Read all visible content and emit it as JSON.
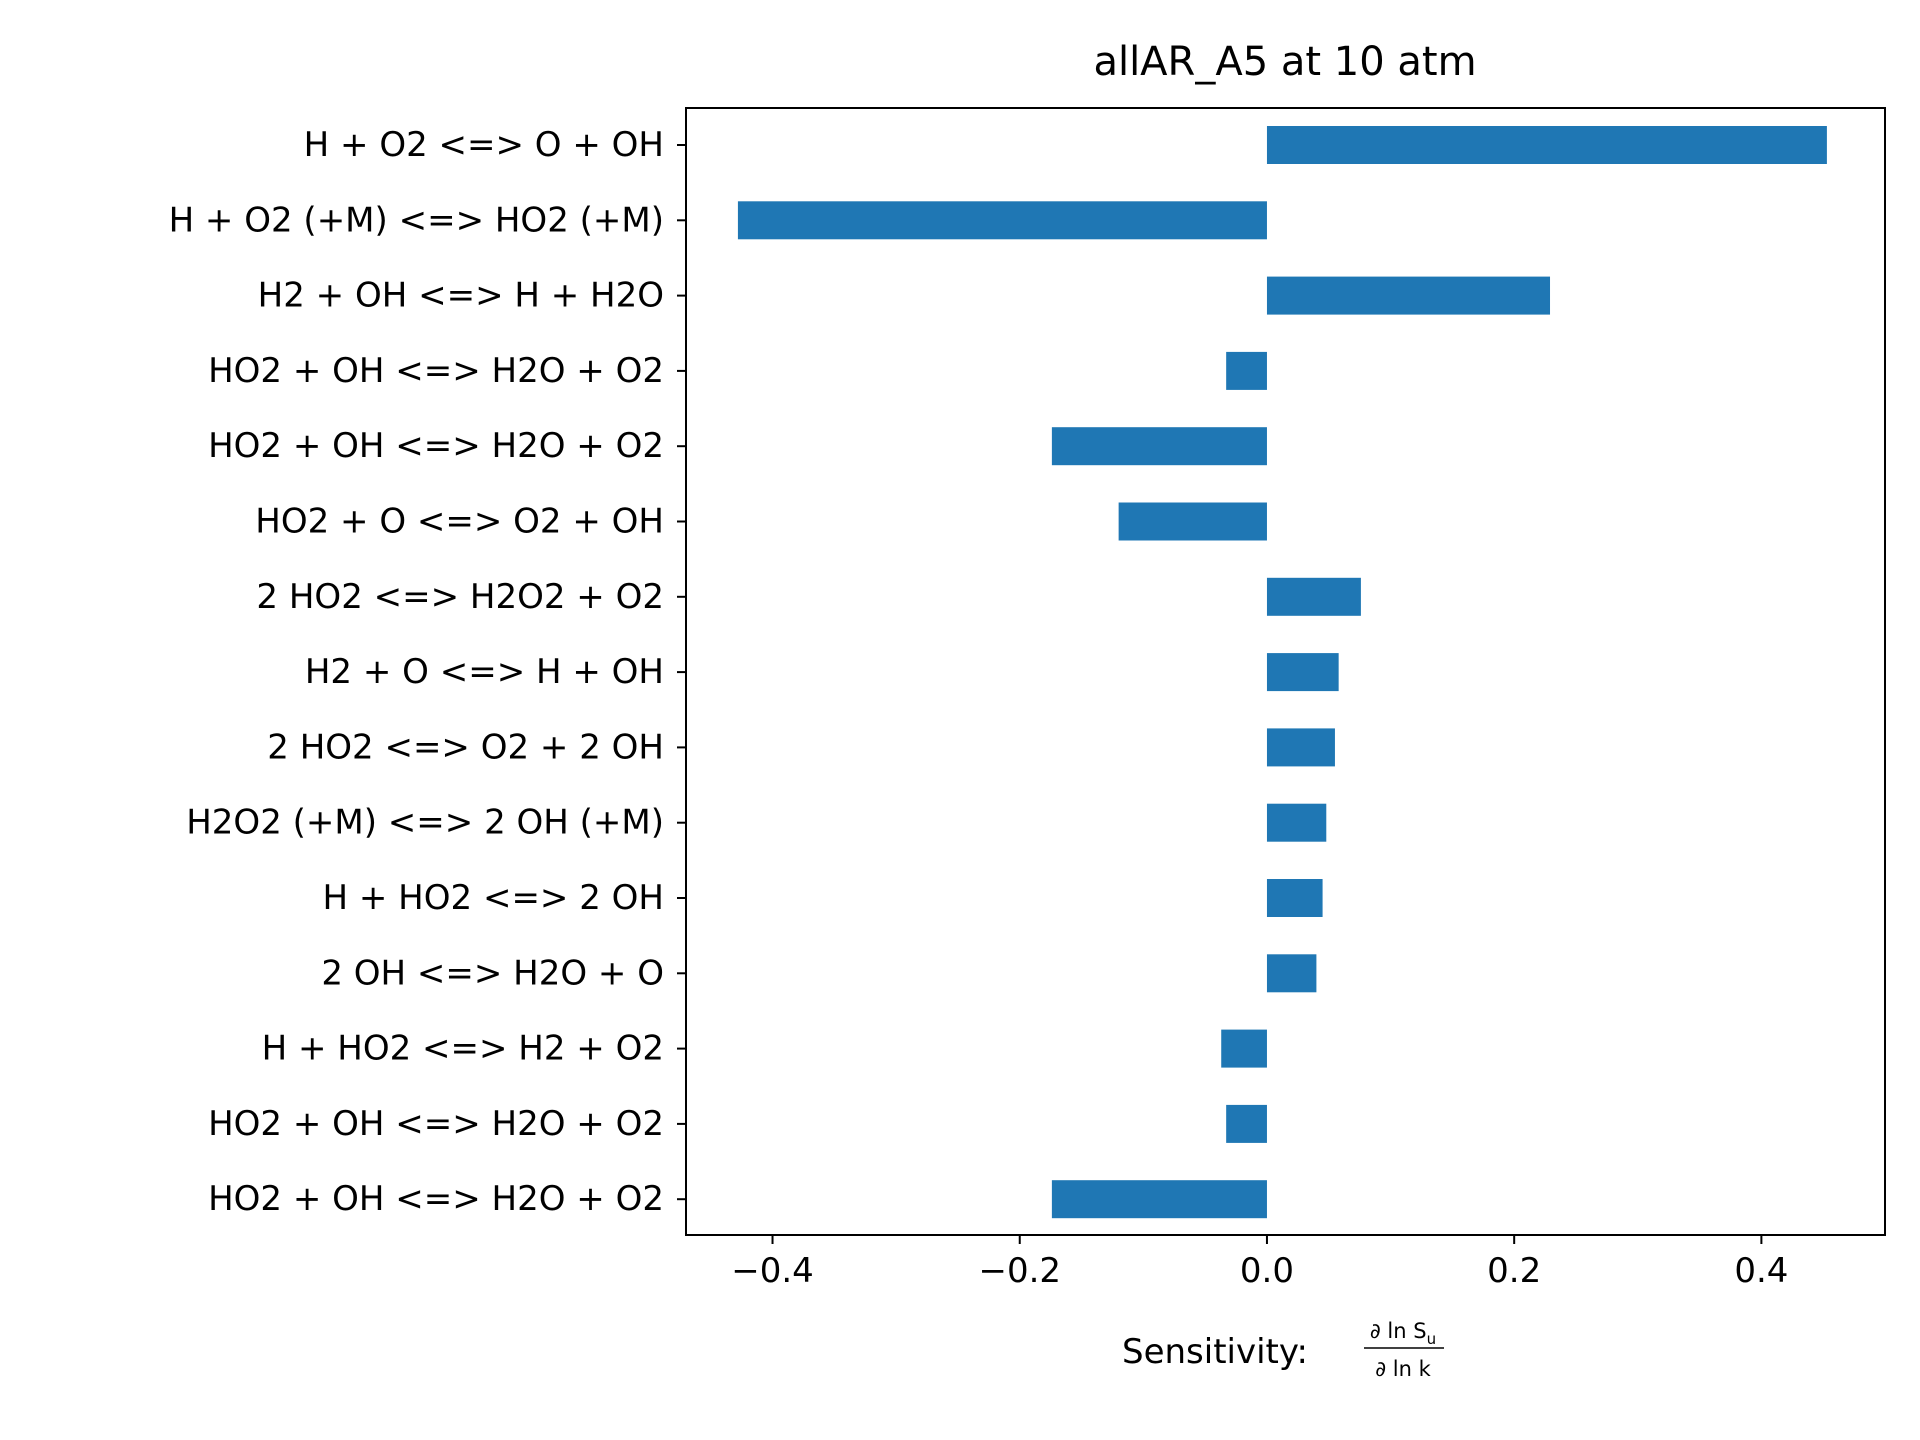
{
  "chart_data": {
    "type": "bar",
    "orientation": "horizontal",
    "title": "allAR_A5 at 10 atm",
    "xlabel_prefix": "Sensitivity: ",
    "xlabel_fraction": {
      "numerator": "∂ ln S",
      "numerator_sub": "u",
      "denominator": "∂ ln k"
    },
    "xlim": [
      -0.47,
      0.5
    ],
    "xticks": [
      -0.4,
      -0.2,
      0.0,
      0.2,
      0.4
    ],
    "xtick_labels": [
      "−0.4",
      "−0.2",
      "0.0",
      "0.2",
      "0.4"
    ],
    "grid": false,
    "bar_color": "#1f77b4",
    "categories": [
      "H + O2 <=> O + OH",
      "H + O2 (+M) <=> HO2 (+M)",
      "H2 + OH <=> H + H2O",
      "HO2 + OH <=> H2O + O2",
      "HO2 + OH <=> H2O + O2",
      "HO2 + O <=> O2 + OH",
      "2 HO2 <=> H2O2 + O2",
      "H2 + O <=> H + OH",
      "2 HO2 <=> O2 + 2 OH",
      "H2O2 (+M) <=> 2 OH (+M)",
      "H + HO2 <=> 2 OH",
      "2 OH <=> H2O + O",
      "H + HO2 <=> H2 + O2",
      "HO2 + OH <=> H2O + O2",
      "HO2 + OH <=> H2O + O2"
    ],
    "values": [
      0.453,
      -0.428,
      0.229,
      -0.033,
      -0.174,
      -0.12,
      0.076,
      0.058,
      0.055,
      0.048,
      0.045,
      0.04,
      -0.037,
      -0.033,
      -0.174
    ]
  }
}
